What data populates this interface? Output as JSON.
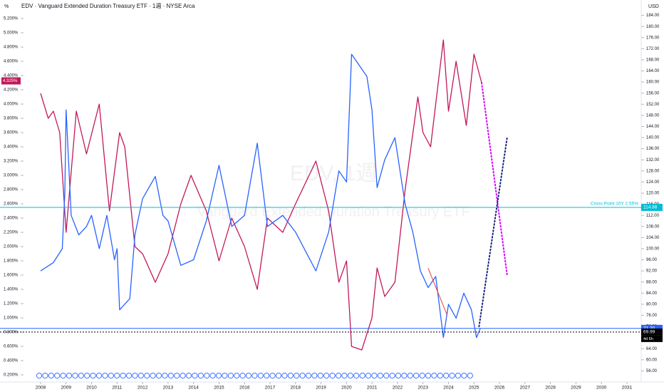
{
  "chart_data": {
    "type": "line",
    "title": "EDV · Vanguard Extended Duration Treasury ETF · 1週 · NYSE Arca",
    "watermark": "EDV, 1週",
    "watermark_sub": "Vanguard Extended Duration Treasury ETF",
    "y_unit": "%",
    "y2_unit": "USD",
    "xlim": [
      2007.33,
      2031.56
    ],
    "xticks": [
      2008,
      2009,
      2010,
      2011,
      2012,
      2013,
      2014,
      2015,
      2016,
      2017,
      2018,
      2019,
      2020,
      2021,
      2022,
      2023,
      2024,
      2025,
      2026,
      2027,
      2028,
      2029,
      2030,
      2031
    ],
    "ylim": [
      0.1,
      5.4
    ],
    "yticks": [
      {
        "value": 0.2,
        "label": "0.200%"
      },
      {
        "value": 0.4,
        "label": "0.400%"
      },
      {
        "value": 0.6,
        "label": "0.600%"
      },
      {
        "value": 0.8,
        "label": "0.800%"
      },
      {
        "value": 1.0,
        "label": "1.000%"
      },
      {
        "value": 1.2,
        "label": "1.200%"
      },
      {
        "value": 1.4,
        "label": "1.400%"
      },
      {
        "value": 1.6,
        "label": "1.600%"
      },
      {
        "value": 1.8,
        "label": "1.800%"
      },
      {
        "value": 2.0,
        "label": "2.000%"
      },
      {
        "value": 2.2,
        "label": "2.200%"
      },
      {
        "value": 2.4,
        "label": "2.400%"
      },
      {
        "value": 2.6,
        "label": "2.600%"
      },
      {
        "value": 2.8,
        "label": "2.800%"
      },
      {
        "value": 3.0,
        "label": "3.000%"
      },
      {
        "value": 3.2,
        "label": "3.200%"
      },
      {
        "value": 3.4,
        "label": "3.400%"
      },
      {
        "value": 3.6,
        "label": "3.600%"
      },
      {
        "value": 3.8,
        "label": "3.800%"
      },
      {
        "value": 4.0,
        "label": "4.000%"
      },
      {
        "value": 4.2,
        "label": "4.200%"
      },
      {
        "value": 4.4,
        "label": "4.400%"
      },
      {
        "value": 4.6,
        "label": "4.600%"
      },
      {
        "value": 4.8,
        "label": "4.800%"
      },
      {
        "value": 5.0,
        "label": "5.000%"
      },
      {
        "value": 5.2,
        "label": "5.200%"
      }
    ],
    "y2lim": [
      52,
      188
    ],
    "y2ticks": [
      {
        "value": 56,
        "label": "56.00"
      },
      {
        "value": 60,
        "label": "60.00"
      },
      {
        "value": 64,
        "label": "64.00"
      },
      {
        "value": 68,
        "label": "68.00"
      },
      {
        "value": 72,
        "label": "72.00"
      },
      {
        "value": 76,
        "label": "76.00"
      },
      {
        "value": 80,
        "label": "80.00"
      },
      {
        "value": 84,
        "label": "84.00"
      },
      {
        "value": 88,
        "label": "88.00"
      },
      {
        "value": 92,
        "label": "92.00"
      },
      {
        "value": 96,
        "label": "96.00"
      },
      {
        "value": 100,
        "label": "100.00"
      },
      {
        "value": 104,
        "label": "104.00"
      },
      {
        "value": 108,
        "label": "108.00"
      },
      {
        "value": 112,
        "label": "112.00"
      },
      {
        "value": 116,
        "label": "116.00"
      },
      {
        "value": 120,
        "label": "120.00"
      },
      {
        "value": 124,
        "label": "124.00"
      },
      {
        "value": 128,
        "label": "128.00"
      },
      {
        "value": 132,
        "label": "132.00"
      },
      {
        "value": 136,
        "label": "136.00"
      },
      {
        "value": 140,
        "label": "140.00"
      },
      {
        "value": 144,
        "label": "144.00"
      },
      {
        "value": 148,
        "label": "148.00"
      },
      {
        "value": 152,
        "label": "152.00"
      },
      {
        "value": 156,
        "label": "156.00"
      },
      {
        "value": 160,
        "label": "160.00"
      },
      {
        "value": 164,
        "label": "164.00"
      },
      {
        "value": 168,
        "label": "168.00"
      },
      {
        "value": 172,
        "label": "172.00"
      },
      {
        "value": 176,
        "label": "176.00"
      },
      {
        "value": 180,
        "label": "180.00"
      },
      {
        "value": 184,
        "label": "184.00"
      }
    ],
    "series": [
      {
        "color": "#c2185b",
        "axis": "y",
        "x": [
          2008.0,
          2008.3,
          2008.5,
          2008.75,
          2009.0,
          2009.4,
          2009.8,
          2010.3,
          2010.7,
          2011.1,
          2011.3,
          2011.7,
          2012.0,
          2012.5,
          2013.0,
          2013.5,
          2013.9,
          2014.5,
          2015.0,
          2015.5,
          2016.0,
          2016.5,
          2016.9,
          2017.5,
          2018.0,
          2018.8,
          2019.3,
          2019.7,
          2020.0,
          2020.2,
          2020.6,
          2021.0,
          2021.2,
          2021.5,
          2021.9,
          2022.3,
          2022.8,
          2023.0,
          2023.3,
          2023.8,
          2024.0,
          2024.3,
          2024.7,
          2025.0,
          2025.3
        ],
        "values": [
          4.15,
          3.8,
          3.9,
          3.6,
          2.2,
          3.9,
          3.3,
          4.0,
          2.5,
          3.6,
          3.4,
          2.0,
          1.9,
          1.5,
          1.9,
          2.6,
          3.0,
          2.5,
          1.8,
          2.4,
          2.0,
          1.4,
          2.4,
          2.2,
          2.6,
          3.2,
          2.5,
          1.5,
          1.8,
          0.6,
          0.55,
          1.0,
          1.7,
          1.3,
          1.5,
          2.8,
          4.1,
          3.6,
          3.4,
          4.9,
          3.9,
          4.6,
          3.7,
          4.7,
          4.3
        ]
      },
      {
        "color": "#2962ff",
        "axis": "y2",
        "x": [
          2008.0,
          2008.5,
          2008.85,
          2008.95,
          2009.0,
          2009.2,
          2009.5,
          2009.8,
          2010.0,
          2010.3,
          2010.6,
          2010.9,
          2011.0,
          2011.1,
          2011.5,
          2011.7,
          2012.0,
          2012.5,
          2012.8,
          2013.0,
          2013.5,
          2014.0,
          2014.5,
          2015.0,
          2015.5,
          2016.0,
          2016.5,
          2016.9,
          2017.5,
          2018.0,
          2018.8,
          2019.3,
          2019.7,
          2020.0,
          2020.2,
          2020.5,
          2020.8,
          2021.0,
          2021.2,
          2021.5,
          2021.9,
          2022.3,
          2022.6,
          2022.9,
          2023.2,
          2023.5,
          2023.8,
          2024.0,
          2024.3,
          2024.6,
          2024.9,
          2025.1,
          2025.25
        ],
        "values": [
          92,
          95,
          100,
          120,
          150,
          112,
          105,
          108,
          112,
          100,
          112,
          96,
          100,
          78,
          82,
          105,
          118,
          126,
          112,
          110,
          94,
          96,
          110,
          130,
          108,
          112,
          138,
          108,
          112,
          106,
          92,
          106,
          128,
          124,
          170,
          166,
          162,
          150,
          122,
          132,
          140,
          116,
          106,
          92,
          86,
          90,
          68,
          80,
          75,
          84,
          78,
          68,
          71.3
        ]
      }
    ],
    "projections": [
      {
        "color": "#d500f9",
        "axis": "y",
        "x": [
          2025.3,
          2026.3
        ],
        "values": [
          4.3,
          1.6
        ]
      },
      {
        "color": "#1a237e",
        "axis": "y2",
        "x": [
          2025.2,
          2026.3
        ],
        "values": [
          72,
          140
        ]
      }
    ],
    "trend_line": {
      "color": "#e53935",
      "axis": "y2",
      "x": [
        2023.2,
        2023.95
      ],
      "values": [
        93,
        76
      ]
    },
    "price_lines": [
      {
        "value": 114.88,
        "axis": "y2",
        "color": "#00bcd4",
        "note": "Cross Point 10Y 2.55%"
      },
      {
        "value": {
          "value": 71.3,
          "label": "71.30"
        },
        "axis": "y2",
        "color": "#2962ff"
      },
      {
        "value": 69.99,
        "axis": "y2",
        "color": "#000000",
        "dotted": true,
        "countdown": "4d 6h"
      }
    ],
    "last_yield": {
      "value": 4.325,
      "label": "4.325%",
      "color": "#c2185b"
    }
  }
}
